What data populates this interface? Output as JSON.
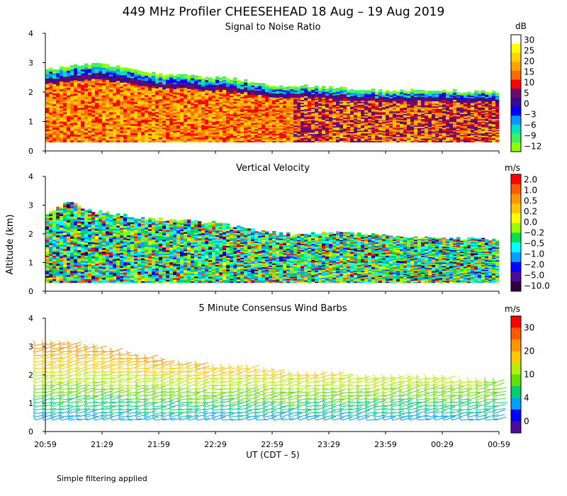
{
  "title": "449 MHz Profiler CHEESEHEAD 18 Aug – 19 Aug 2019",
  "footer": "Simple filtering applied",
  "y_axis_label": "Altitude (km)",
  "x_axis": {
    "label": "UT  (CDT – 5)",
    "ticks": [
      "20:59",
      "21:29",
      "21:59",
      "22:29",
      "22:59",
      "23:29",
      "23:59",
      "00:29",
      "00:59"
    ]
  },
  "chart_data": [
    {
      "type": "heatmap",
      "title": "Signal to Noise Ratio",
      "ylabel": "Altitude (km)",
      "ylim": [
        0,
        4
      ],
      "yticks": [
        "0",
        "1",
        "2",
        "3",
        "4"
      ],
      "colorbar": {
        "unit": "dB",
        "labels": [
          "30",
          "25",
          "20",
          "15",
          "10",
          "5",
          "0",
          "−3",
          "−6",
          "−9",
          "−12"
        ],
        "colors": [
          "#ffffff",
          "#ffff00",
          "#ffd400",
          "#ffa500",
          "#ff6a00",
          "#ff0000",
          "#6a0a6a",
          "#3a0a90",
          "#0000ff",
          "#0a96ff",
          "#00e0c0",
          "#40f060",
          "#90ff00"
        ]
      },
      "top_km": [
        2.75,
        2.9,
        2.95,
        2.9,
        2.7,
        2.6,
        2.55,
        2.5,
        2.45,
        2.3,
        2.2,
        2.2,
        2.15,
        2.1,
        2.05,
        2.05,
        2.1,
        2.05,
        2.0,
        2.0
      ],
      "bottom_km": 0.3
    },
    {
      "type": "heatmap",
      "title": "Vertical Velocity",
      "ylabel": "Altitude (km)",
      "ylim": [
        0,
        4
      ],
      "yticks": [
        "0",
        "1",
        "2",
        "3",
        "4"
      ],
      "colorbar": {
        "unit": "m/s",
        "labels": [
          "2.0",
          "1.0",
          "0.5",
          "0.2",
          "0.0",
          "−0.2",
          "−0.5",
          "−1.0",
          "−2.0",
          "−5.0",
          "−10.0"
        ],
        "colors": [
          "#ff0000",
          "#ff5a00",
          "#ff9600",
          "#ffc800",
          "#ffff00",
          "#96ff00",
          "#00e050",
          "#00ffff",
          "#00a0ff",
          "#0000ff",
          "#4a0a9a",
          "#300040"
        ]
      },
      "top_km": [
        2.7,
        3.1,
        2.8,
        2.7,
        2.55,
        2.5,
        2.45,
        2.4,
        2.25,
        2.1,
        2.0,
        2.0,
        2.05,
        2.0,
        1.95,
        1.9,
        1.85,
        1.85,
        1.85,
        1.8
      ],
      "bottom_km": 0.3
    },
    {
      "type": "scatter",
      "subtype": "wind barbs",
      "title": "5 Minute Consensus Wind Barbs",
      "ylabel": "Altitude (km)",
      "ylim": [
        0,
        4
      ],
      "yticks": [
        "0",
        "1",
        "2",
        "3",
        "4"
      ],
      "colorbar": {
        "unit": "m/s",
        "labels": [
          "30",
          "20",
          "10",
          "4",
          "0"
        ],
        "colors": [
          "#ff0000",
          "#ff5a00",
          "#ff9600",
          "#ffc800",
          "#b4f000",
          "#64e000",
          "#00d070",
          "#00a0ff",
          "#0000ff",
          "#4a0a9a"
        ]
      },
      "top_km": [
        3.1,
        3.1,
        3.0,
        2.9,
        2.7,
        2.5,
        2.4,
        2.3,
        2.25,
        2.2,
        2.1,
        2.0,
        2.0,
        1.95,
        1.9,
        1.9,
        1.85,
        1.85,
        1.8,
        1.8
      ],
      "bottom_km": 0.4
    }
  ]
}
